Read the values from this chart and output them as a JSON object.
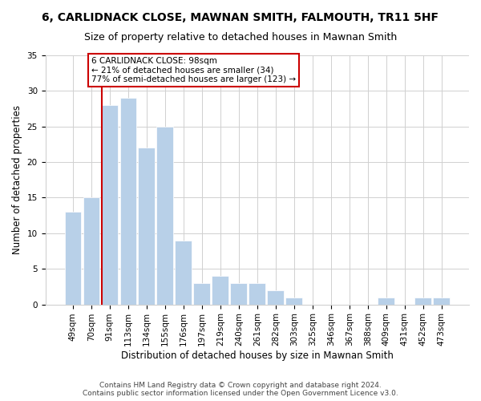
{
  "title": "6, CARLIDNACK CLOSE, MAWNAN SMITH, FALMOUTH, TR11 5HF",
  "subtitle": "Size of property relative to detached houses in Mawnan Smith",
  "xlabel": "Distribution of detached houses by size in Mawnan Smith",
  "ylabel": "Number of detached properties",
  "bar_labels": [
    "49sqm",
    "70sqm",
    "91sqm",
    "113sqm",
    "134sqm",
    "155sqm",
    "176sqm",
    "197sqm",
    "219sqm",
    "240sqm",
    "261sqm",
    "282sqm",
    "303sqm",
    "325sqm",
    "346sqm",
    "367sqm",
    "388sqm",
    "409sqm",
    "431sqm",
    "452sqm",
    "473sqm"
  ],
  "bar_heights": [
    13,
    15,
    28,
    29,
    22,
    25,
    9,
    3,
    4,
    3,
    3,
    2,
    1,
    0,
    0,
    0,
    0,
    1,
    0,
    1,
    1
  ],
  "bar_color": "#b8d0e8",
  "vline_color": "#cc0000",
  "vline_index": 2,
  "ylim": [
    0,
    35
  ],
  "yticks": [
    0,
    5,
    10,
    15,
    20,
    25,
    30,
    35
  ],
  "annotation_title": "6 CARLIDNACK CLOSE: 98sqm",
  "annotation_line1": "← 21% of detached houses are smaller (34)",
  "annotation_line2": "77% of semi-detached houses are larger (123) →",
  "footer1": "Contains HM Land Registry data © Crown copyright and database right 2024.",
  "footer2": "Contains public sector information licensed under the Open Government Licence v3.0.",
  "background_color": "#ffffff",
  "grid_color": "#d0d0d0",
  "title_fontsize": 10,
  "subtitle_fontsize": 9,
  "axis_label_fontsize": 8.5,
  "tick_fontsize": 7.5,
  "annotation_fontsize": 7.5,
  "footer_fontsize": 6.5
}
